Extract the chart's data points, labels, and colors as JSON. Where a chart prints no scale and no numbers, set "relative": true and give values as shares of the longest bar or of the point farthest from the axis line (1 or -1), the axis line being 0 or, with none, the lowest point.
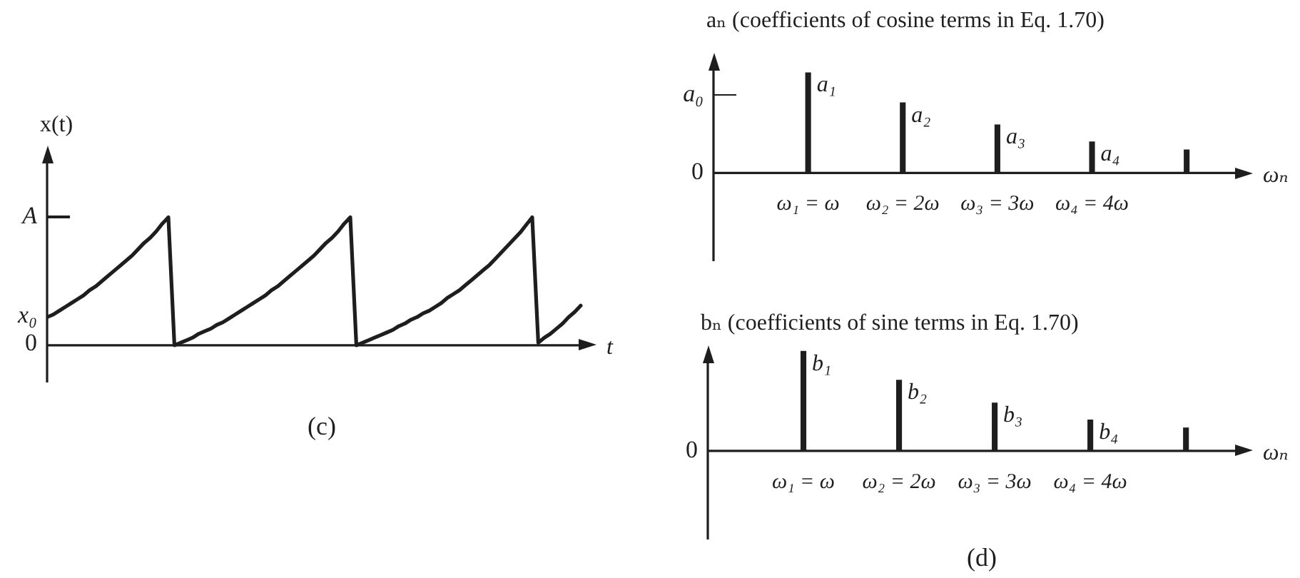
{
  "chart_data": [
    {
      "type": "line",
      "ylabel": "x(t)",
      "xlabel": "t",
      "relative": true,
      "annotations": [
        "A",
        "x₀",
        "0",
        "(c)"
      ],
      "categories": [
        null,
        null,
        null,
        null,
        null,
        null,
        null,
        null,
        null,
        null,
        null,
        null,
        null,
        null,
        null,
        null,
        null,
        null,
        null,
        null,
        null,
        null,
        null,
        null,
        null,
        null,
        null,
        null,
        null,
        null,
        null,
        null,
        null,
        null,
        null,
        null,
        null,
        null,
        null,
        null,
        null,
        null,
        null,
        null,
        null,
        null,
        null,
        null,
        null,
        null,
        null,
        null,
        null,
        null,
        null,
        null,
        null,
        null,
        null,
        null,
        null,
        null,
        null,
        null,
        null,
        null,
        null,
        null,
        null,
        null,
        null,
        null,
        null,
        null,
        null,
        null,
        null,
        null,
        null,
        null,
        null,
        null,
        null,
        null,
        null,
        null,
        null,
        null,
        null
      ],
      "color": "#1e1e1e",
      "values": [
        0.22,
        0.24,
        0.27,
        0.3,
        0.33,
        0.36,
        0.39,
        0.43,
        0.46,
        0.5,
        0.54,
        0.58,
        0.62,
        0.66,
        0.7,
        0.75,
        0.8,
        0.84,
        0.89,
        0.95,
        1,
        0,
        0.02,
        0.04,
        0.06,
        0.09,
        0.11,
        0.13,
        0.16,
        0.18,
        0.21,
        0.24,
        0.27,
        0.3,
        0.33,
        0.36,
        0.39,
        0.43,
        0.46,
        0.5,
        0.54,
        0.58,
        0.62,
        0.66,
        0.7,
        0.75,
        0.8,
        0.84,
        0.89,
        0.95,
        1,
        0,
        0.02,
        0.04,
        0.06,
        0.08,
        0.1,
        0.12,
        0.15,
        0.17,
        0.2,
        0.22,
        0.25,
        0.27,
        0.3,
        0.33,
        0.37,
        0.4,
        0.43,
        0.47,
        0.51,
        0.55,
        0.59,
        0.63,
        0.68,
        0.73,
        0.78,
        0.83,
        0.88,
        0.94,
        1,
        0.02,
        0.06,
        0.09,
        0.13,
        0.17,
        0.22,
        0.26,
        0.31
      ]
    },
    {
      "type": "bar",
      "ylabel": "aₙ (coefficients of cosine terms in Eq. 1.70)",
      "xlabel": "ωₙ",
      "relative": true,
      "annotations": [
        "a₀",
        "0",
        {
          "text": "a₁",
          "x": "ω₁ = ω",
          "y": 1
        },
        {
          "text": "a₂",
          "x": "ω₂ = 2ω",
          "y": 0.7
        },
        {
          "text": "a₃",
          "x": "ω₃ = 3ω",
          "y": 0.48
        },
        {
          "text": "a₄",
          "x": "ω₄ = 4ω",
          "y": 0.31
        }
      ],
      "categories": [
        "ω₁ = ω",
        "ω₂ = 2ω",
        "ω₃ = 3ω",
        "ω₄ = 4ω",
        null
      ],
      "color": "#1e1e1e",
      "values": [
        1,
        0.7,
        0.48,
        0.31,
        0.23
      ]
    },
    {
      "type": "bar",
      "ylabel": "bₙ (coefficients of sine terms in Eq. 1.70)",
      "xlabel": "ωₙ",
      "relative": true,
      "annotations": [
        "0",
        "(d)",
        {
          "text": "b₁",
          "x": "ω₁ = ω",
          "y": 1
        },
        {
          "text": "b₂",
          "x": "ω₂ = 2ω",
          "y": 0.71
        },
        {
          "text": "b₃",
          "x": "ω₃ = 3ω",
          "y": 0.48
        },
        {
          "text": "b₄",
          "x": "ω₄ = 4ω",
          "y": 0.31
        }
      ],
      "categories": [
        "ω₁ = ω",
        "ω₂ = 2ω",
        "ω₃ = 3ω",
        "ω₄ = 4ω",
        null
      ],
      "color": "#1e1e1e",
      "values": [
        1,
        0.71,
        0.48,
        0.31,
        0.23
      ]
    }
  ]
}
